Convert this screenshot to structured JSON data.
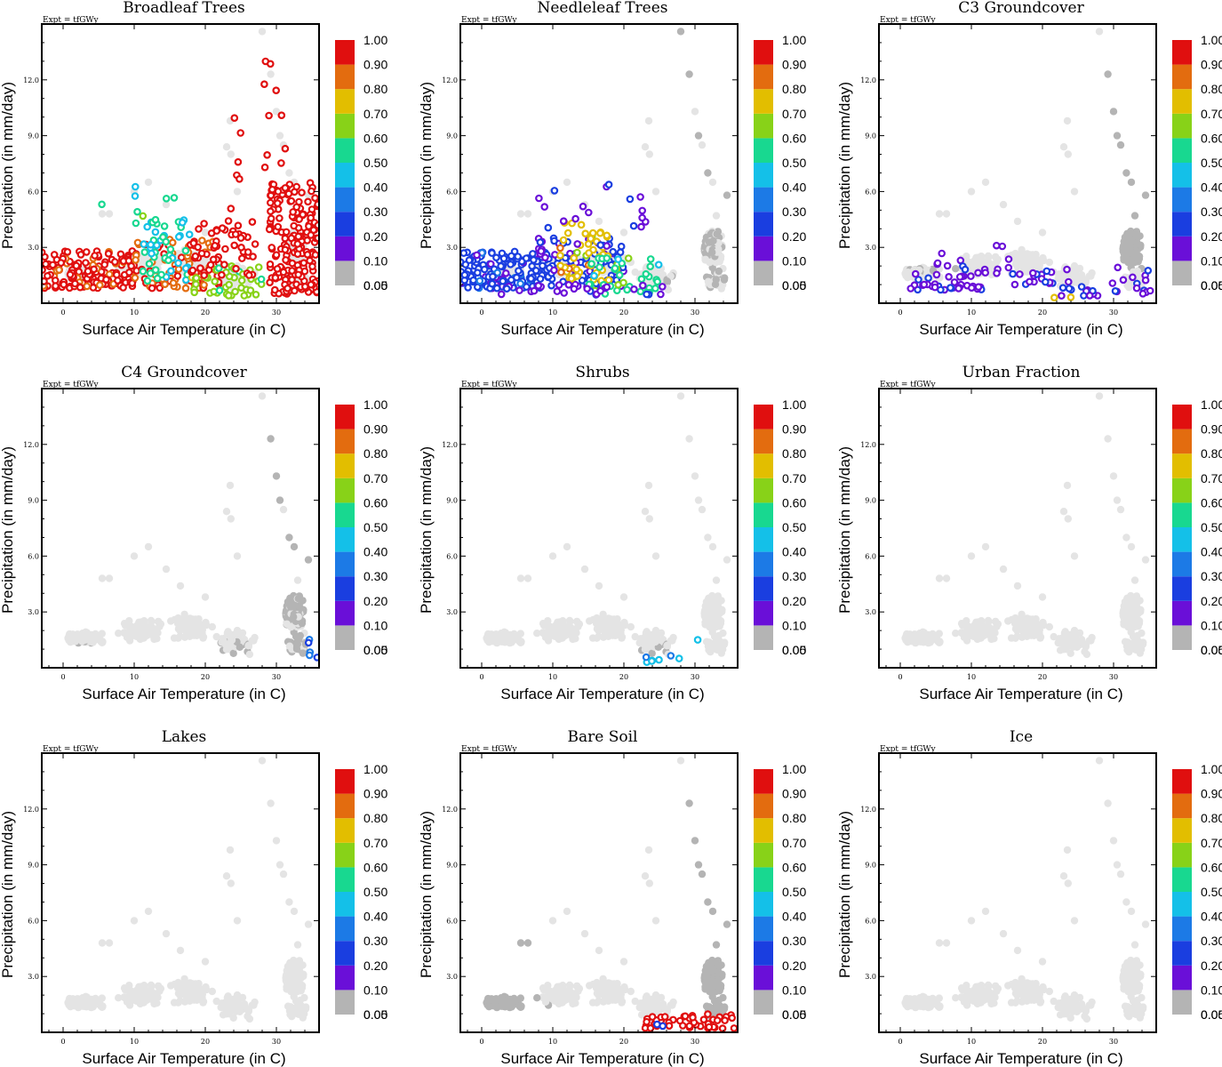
{
  "figure": {
    "expt_label": "Expt = tfGWy",
    "xlabel": "Surface Air Temperature (in C)",
    "ylabel": "Precipitation (in mm/day)",
    "xticks": [
      "0",
      "10",
      "20",
      "30"
    ],
    "yticks": [
      "3.0",
      "6.0",
      "9.0",
      "12.0"
    ],
    "colorbar": {
      "labels": [
        "0.00",
        "0.05",
        "0.10",
        "0.20",
        "0.30",
        "0.40",
        "0.50",
        "0.60",
        "0.70",
        "0.80",
        "0.90",
        "1.00"
      ],
      "colors": [
        "#b4b4b4",
        "#6a0fd8",
        "#1a3ee0",
        "#1c7ae6",
        "#14c0e8",
        "#18d890",
        "#88d218",
        "#e2be00",
        "#e36c0f",
        "#e00f0f"
      ]
    },
    "background_point_color": "#e4e4e4",
    "zero_point_color": "#b4b4b4"
  },
  "chart_data": [
    {
      "type": "scatter",
      "title": "Broadleaf Trees",
      "xlabel": "Surface Air Temperature (in C)",
      "ylabel": "Precipitation (in mm/day)",
      "xlim": [
        -3,
        36
      ],
      "ylim": [
        0,
        15
      ],
      "highlight": [
        {
          "x_range": [
            -3,
            10
          ],
          "y_range": [
            0.8,
            2.8
          ],
          "value": 0.85,
          "count": 160
        },
        {
          "x_range": [
            10,
            22
          ],
          "y_range": [
            0.8,
            3.5
          ],
          "value": 0.8,
          "count": 90
        },
        {
          "x_range": [
            11,
            18
          ],
          "y_range": [
            1.2,
            4.5
          ],
          "value": 0.4,
          "count": 45
        },
        {
          "x_range": [
            18,
            28
          ],
          "y_range": [
            0.4,
            2.0
          ],
          "value": 0.55,
          "count": 45
        },
        {
          "x_range": [
            18,
            28
          ],
          "y_range": [
            1.5,
            4.5
          ],
          "value": 0.95,
          "count": 50
        },
        {
          "x_range": [
            29,
            36
          ],
          "y_range": [
            0.5,
            6.5
          ],
          "value": 0.95,
          "count": 190
        },
        {
          "x_range": [
            28,
            32
          ],
          "y_range": [
            7,
            13
          ],
          "value": 0.95,
          "count": 10
        },
        {
          "x_range": [
            22,
            25
          ],
          "y_range": [
            5,
            10
          ],
          "value": 0.95,
          "count": 6
        },
        {
          "x_range": [
            5,
            16
          ],
          "y_range": [
            4,
            6.5
          ],
          "value": 0.45,
          "count": 10
        }
      ]
    },
    {
      "type": "scatter",
      "title": "Needleleaf Trees",
      "xlabel": "Surface Air Temperature (in C)",
      "ylabel": "Precipitation (in mm/day)",
      "xlim": [
        -3,
        36
      ],
      "ylim": [
        0,
        15
      ],
      "highlight": [
        {
          "x_range": [
            -3,
            10
          ],
          "y_range": [
            0.8,
            2.8
          ],
          "value": 0.15,
          "count": 180
        },
        {
          "x_range": [
            8,
            20
          ],
          "y_range": [
            0.8,
            3.5
          ],
          "value": 0.12,
          "count": 90
        },
        {
          "x_range": [
            11,
            18
          ],
          "y_range": [
            1.2,
            4.5
          ],
          "value": 0.65,
          "count": 50
        },
        {
          "x_range": [
            15,
            25
          ],
          "y_range": [
            0.5,
            2.5
          ],
          "value": 0.45,
          "count": 40
        },
        {
          "x_range": [
            0,
            26
          ],
          "y_range": [
            0.4,
            1.0
          ],
          "value": 0.07,
          "count": 25
        },
        {
          "x_range": [
            8,
            26
          ],
          "y_range": [
            3.0,
            6.5
          ],
          "value": 0.07,
          "count": 20
        }
      ]
    },
    {
      "type": "scatter",
      "title": "C3 Groundcover",
      "xlabel": "Surface Air Temperature (in C)",
      "ylabel": "Precipitation (in mm/day)",
      "xlim": [
        -3,
        36
      ],
      "ylim": [
        0,
        15
      ],
      "highlight": [
        {
          "x_range": [
            1,
            12
          ],
          "y_range": [
            0.7,
            1.6
          ],
          "value": 0.07,
          "count": 35
        },
        {
          "x_range": [
            5,
            16
          ],
          "y_range": [
            1.6,
            3.2
          ],
          "value": 0.07,
          "count": 15
        },
        {
          "x_range": [
            15,
            24
          ],
          "y_range": [
            1.0,
            2.2
          ],
          "value": 0.07,
          "count": 20
        },
        {
          "x_range": [
            22,
            28
          ],
          "y_range": [
            0.4,
            1.0
          ],
          "value": 0.07,
          "count": 12
        },
        {
          "x_range": [
            29,
            36
          ],
          "y_range": [
            0.5,
            2.0
          ],
          "value": 0.07,
          "count": 15
        },
        {
          "x_range": [
            21,
            24
          ],
          "y_range": [
            0.3,
            0.6
          ],
          "value": 0.65,
          "count": 2
        }
      ]
    },
    {
      "type": "scatter",
      "title": "C4 Groundcover",
      "xlabel": "Surface Air Temperature (in C)",
      "ylabel": "Precipitation (in mm/day)",
      "xlim": [
        -3,
        36
      ],
      "ylim": [
        0,
        15
      ],
      "highlight": [
        {
          "x_range": [
            34,
            36
          ],
          "y_range": [
            0.5,
            1.7
          ],
          "value": 0.2,
          "count": 5
        }
      ]
    },
    {
      "type": "scatter",
      "title": "Shrubs",
      "xlabel": "Surface Air Temperature (in C)",
      "ylabel": "Precipitation (in mm/day)",
      "xlim": [
        -3,
        36
      ],
      "ylim": [
        0,
        15
      ],
      "highlight": [
        {
          "x_range": [
            23,
            28
          ],
          "y_range": [
            0.3,
            0.7
          ],
          "value": 0.3,
          "count": 8
        },
        {
          "x_range": [
            30,
            31
          ],
          "y_range": [
            1.5,
            1.6
          ],
          "value": 0.4,
          "count": 1
        }
      ]
    },
    {
      "type": "scatter",
      "title": "Urban Fraction",
      "xlabel": "Surface Air Temperature (in C)",
      "ylabel": "Precipitation (in mm/day)",
      "xlim": [
        -3,
        36
      ],
      "ylim": [
        0,
        15
      ],
      "highlight": []
    },
    {
      "type": "scatter",
      "title": "Lakes",
      "xlabel": "Surface Air Temperature (in C)",
      "ylabel": "Precipitation (in mm/day)",
      "xlim": [
        -3,
        36
      ],
      "ylim": [
        0,
        15
      ],
      "highlight": []
    },
    {
      "type": "scatter",
      "title": "Bare Soil",
      "xlabel": "Surface Air Temperature (in C)",
      "ylabel": "Precipitation (in mm/day)",
      "xlim": [
        -3,
        36
      ],
      "ylim": [
        0,
        15
      ],
      "highlight": [
        {
          "x_range": [
            23,
            36
          ],
          "y_range": [
            0.2,
            1.0
          ],
          "value": 0.95,
          "count": 45
        },
        {
          "x_range": [
            24,
            28
          ],
          "y_range": [
            0.3,
            0.5
          ],
          "value": 0.2,
          "count": 2
        }
      ]
    },
    {
      "type": "scatter",
      "title": "Ice",
      "xlabel": "Surface Air Temperature (in C)",
      "ylabel": "Precipitation (in mm/day)",
      "xlim": [
        -3,
        36
      ],
      "ylim": [
        0,
        15
      ],
      "highlight": []
    }
  ]
}
